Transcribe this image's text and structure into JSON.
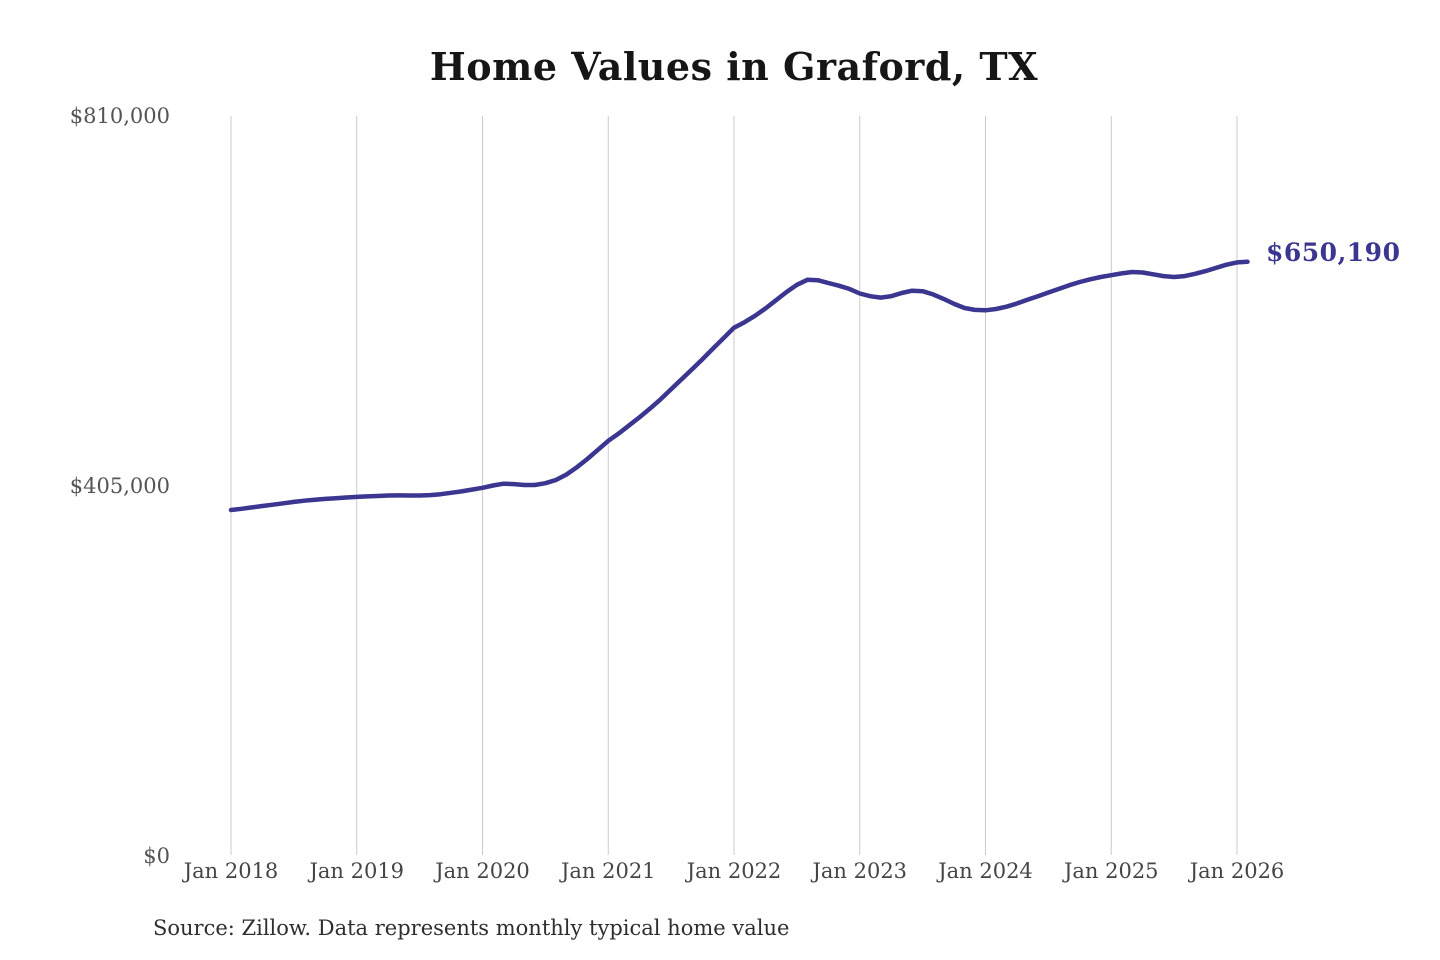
{
  "title": "Home Values in Graford, TX",
  "annotation": {
    "latest_value_label": "$650,190"
  },
  "source_note": "Source: Zillow. Data represents monthly typical home value",
  "colors": {
    "line": "#3b3690",
    "annotation": "#3b3690",
    "grid": "#cbcbcb",
    "title": "#161616",
    "y_tick_label": "#545454",
    "x_tick_label": "#454545",
    "source": "#2e2e2e",
    "background": "#ffffff"
  },
  "chart_data": {
    "type": "line",
    "title": "Home Values in Graford, TX",
    "xlabel": "",
    "ylabel": "",
    "ylim": [
      0,
      810000
    ],
    "grid": "vertical-only",
    "legend": "none",
    "x_tick_labels": [
      "Jan 2018",
      "Jan 2019",
      "Jan 2020",
      "Jan 2021",
      "Jan 2022",
      "Jan 2023",
      "Jan 2024",
      "Jan 2025",
      "Jan 2026"
    ],
    "y_tick_labels": [
      "$0",
      "$405,000",
      "$810,000"
    ],
    "y_tick_values": [
      0,
      405000,
      810000
    ],
    "latest_value": 650190,
    "series": [
      {
        "name": "Monthly typical home value",
        "start": "Jan 2018",
        "end": "Feb 2026",
        "frequency": "monthly",
        "values": [
          378100,
          379500,
          381000,
          382500,
          384000,
          385500,
          387000,
          388300,
          389400,
          390300,
          391100,
          391800,
          392500,
          393000,
          393500,
          394000,
          394200,
          394000,
          394000,
          394500,
          395500,
          397000,
          398500,
          400500,
          402500,
          405000,
          407000,
          406500,
          405500,
          405500,
          407500,
          411000,
          417000,
          425000,
          434000,
          444000,
          454000,
          462000,
          471000,
          480000,
          489500,
          499500,
          510500,
          521500,
          532500,
          543500,
          555000,
          566500,
          578000,
          584000,
          591000,
          599000,
          608000,
          617000,
          625000,
          630500,
          630000,
          627000,
          624000,
          620500,
          615500,
          612500,
          611000,
          612500,
          616000,
          618500,
          618000,
          614500,
          609500,
          604000,
          599500,
          597500,
          597000,
          598500,
          601000,
          604500,
          608500,
          612500,
          616500,
          620500,
          624500,
          628000,
          631000,
          633500,
          635500,
          637500,
          639000,
          638500,
          636500,
          634500,
          633500,
          634500,
          637000,
          640000,
          643500,
          647000,
          649500,
          650190
        ]
      }
    ]
  }
}
